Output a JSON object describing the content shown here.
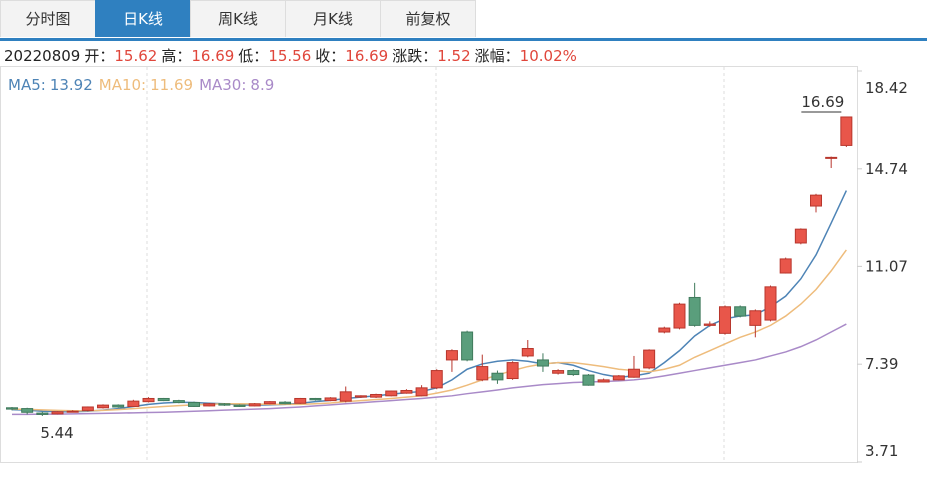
{
  "tabs": [
    "分时图",
    "日K线",
    "周K线",
    "月K线",
    "前复权"
  ],
  "chart_data": {
    "type": "candlestick",
    "date": "20220809",
    "info_labels": [
      "开：",
      "高：",
      "低：",
      "收：",
      "涨跌：",
      "涨幅："
    ],
    "change": 1.52,
    "change_pct": {
      "value": 10.02,
      "label": "10.02%"
    },
    "up_color": "#e8564a",
    "down_color": "#5a9e7c",
    "ylim": [
      3.71,
      18.42
    ],
    "yticks": [
      3.71,
      7.39,
      11.07,
      14.74,
      18.42
    ],
    "open": [
      5.75,
      5.72,
      5.55,
      5.52,
      5.6,
      5.65,
      5.75,
      5.85,
      5.8,
      5.98,
      6.1,
      6.02,
      5.95,
      5.82,
      5.9,
      5.85,
      5.82,
      5.9,
      5.96,
      5.92,
      6.1,
      6.02,
      6.0,
      6.15,
      6.15,
      6.2,
      6.3,
      6.2,
      6.5,
      7.55,
      8.6,
      6.8,
      7.05,
      6.85,
      7.7,
      7.55,
      7.05,
      7.15,
      6.98,
      6.72,
      6.8,
      6.9,
      7.25,
      8.6,
      8.75,
      9.9,
      8.85,
      8.55,
      9.55,
      8.85,
      9.05,
      10.82,
      11.95,
      13.34,
      15.16,
      15.62
    ],
    "high": [
      5.78,
      5.75,
      5.6,
      5.62,
      5.66,
      5.8,
      5.88,
      5.88,
      6.05,
      6.15,
      6.12,
      6.05,
      5.98,
      5.93,
      5.93,
      5.88,
      5.93,
      6.0,
      6.0,
      6.12,
      6.12,
      6.15,
      6.55,
      6.22,
      6.28,
      6.4,
      6.45,
      6.6,
      7.2,
      7.95,
      8.65,
      7.75,
      7.15,
      7.5,
      8.3,
      7.8,
      7.2,
      7.2,
      7.02,
      6.85,
      6.98,
      7.7,
      7.95,
      8.8,
      9.7,
      10.45,
      9.0,
      9.6,
      9.6,
      9.45,
      10.35,
      11.4,
      12.5,
      13.8,
      15.2,
      16.69
    ],
    "low": [
      5.65,
      5.5,
      5.44,
      5.5,
      5.58,
      5.62,
      5.72,
      5.75,
      5.78,
      5.95,
      6.0,
      5.92,
      5.78,
      5.8,
      5.82,
      5.78,
      5.8,
      5.88,
      5.88,
      5.9,
      6.02,
      6.0,
      5.95,
      6.12,
      6.12,
      6.18,
      6.28,
      6.18,
      6.45,
      7.1,
      7.5,
      6.75,
      6.65,
      6.8,
      7.65,
      7.1,
      7.0,
      6.95,
      6.58,
      6.7,
      6.78,
      6.88,
      7.2,
      8.55,
      8.7,
      8.8,
      8.8,
      8.5,
      9.15,
      8.4,
      9.0,
      10.8,
      11.9,
      13.1,
      14.77,
      15.56
    ],
    "close": [
      5.7,
      5.58,
      5.5,
      5.6,
      5.62,
      5.78,
      5.85,
      5.78,
      6.0,
      6.1,
      6.02,
      5.95,
      5.8,
      5.9,
      5.85,
      5.8,
      5.9,
      5.98,
      5.9,
      6.1,
      6.05,
      6.12,
      6.35,
      6.2,
      6.25,
      6.38,
      6.4,
      6.5,
      7.15,
      7.9,
      7.55,
      7.3,
      6.8,
      7.45,
      7.98,
      7.32,
      7.15,
      7.0,
      6.6,
      6.8,
      6.95,
      7.2,
      7.92,
      8.75,
      9.65,
      8.85,
      8.9,
      9.55,
      9.2,
      9.4,
      10.3,
      11.35,
      12.47,
      13.75,
      15.17,
      16.69
    ],
    "series": [
      {
        "name": "MA5:",
        "color": "#4e84b6",
        "values": [
          5.68,
          5.66,
          5.62,
          5.6,
          5.6,
          5.62,
          5.66,
          5.72,
          5.8,
          5.88,
          5.93,
          5.96,
          5.95,
          5.92,
          5.9,
          5.86,
          5.85,
          5.86,
          5.88,
          5.92,
          5.98,
          6.03,
          6.1,
          6.15,
          6.2,
          6.26,
          6.32,
          6.36,
          6.5,
          6.8,
          7.2,
          7.4,
          7.5,
          7.55,
          7.5,
          7.4,
          7.45,
          7.35,
          7.15,
          7.0,
          6.9,
          6.95,
          7.05,
          7.45,
          7.9,
          8.45,
          8.85,
          9.1,
          9.2,
          9.25,
          9.55,
          9.95,
          10.6,
          11.5,
          12.7,
          13.92
        ]
      },
      {
        "name": "MA10:",
        "color": "#eebc7c",
        "values": [
          5.7,
          5.69,
          5.67,
          5.65,
          5.64,
          5.64,
          5.65,
          5.68,
          5.72,
          5.76,
          5.8,
          5.83,
          5.86,
          5.88,
          5.9,
          5.9,
          5.89,
          5.88,
          5.88,
          5.88,
          5.9,
          5.93,
          5.98,
          6.02,
          6.06,
          6.1,
          6.15,
          6.2,
          6.3,
          6.42,
          6.6,
          6.8,
          6.98,
          7.15,
          7.3,
          7.4,
          7.45,
          7.45,
          7.38,
          7.3,
          7.2,
          7.15,
          7.1,
          7.2,
          7.35,
          7.65,
          7.9,
          8.15,
          8.4,
          8.6,
          8.85,
          9.2,
          9.65,
          10.2,
          10.9,
          11.69
        ]
      },
      {
        "name": "MA30:",
        "color": "#a98ac8",
        "values": [
          5.5,
          5.5,
          5.51,
          5.51,
          5.52,
          5.53,
          5.54,
          5.55,
          5.56,
          5.57,
          5.58,
          5.6,
          5.62,
          5.64,
          5.66,
          5.68,
          5.7,
          5.72,
          5.75,
          5.78,
          5.82,
          5.86,
          5.9,
          5.94,
          5.98,
          6.02,
          6.06,
          6.1,
          6.15,
          6.2,
          6.28,
          6.35,
          6.42,
          6.5,
          6.56,
          6.62,
          6.66,
          6.7,
          6.72,
          6.74,
          6.76,
          6.8,
          6.86,
          6.95,
          7.05,
          7.15,
          7.25,
          7.35,
          7.45,
          7.55,
          7.7,
          7.85,
          8.05,
          8.3,
          8.6,
          8.9
        ]
      }
    ]
  }
}
